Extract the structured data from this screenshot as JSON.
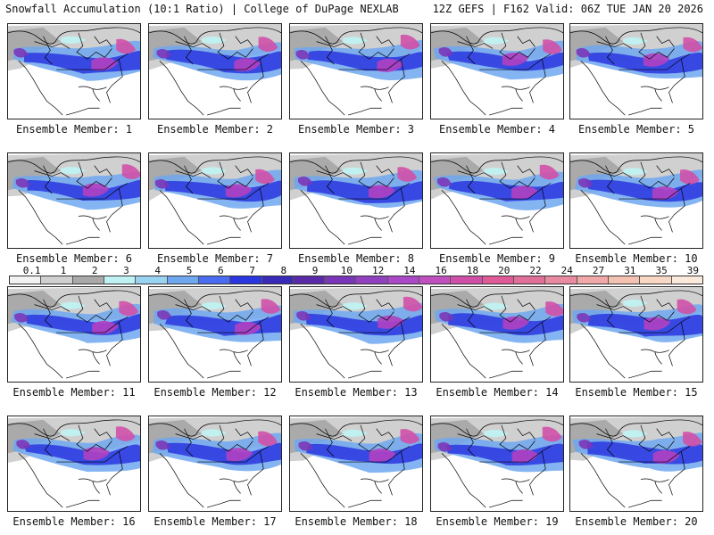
{
  "header": {
    "left": "Snowfall Accumulation (10:1 Ratio) | College of DuPage NEXLAB",
    "right": "12Z GEFS | F162 Valid: 06Z TUE JAN 20 2026"
  },
  "members": [
    {
      "label": "Ensemble Member: 1"
    },
    {
      "label": "Ensemble Member: 2"
    },
    {
      "label": "Ensemble Member: 3"
    },
    {
      "label": "Ensemble Member: 4"
    },
    {
      "label": "Ensemble Member: 5"
    },
    {
      "label": "Ensemble Member: 6"
    },
    {
      "label": "Ensemble Member: 7"
    },
    {
      "label": "Ensemble Member: 8"
    },
    {
      "label": "Ensemble Member: 9"
    },
    {
      "label": "Ensemble Member: 10"
    },
    {
      "label": "Ensemble Member: 11"
    },
    {
      "label": "Ensemble Member: 12"
    },
    {
      "label": "Ensemble Member: 13"
    },
    {
      "label": "Ensemble Member: 14"
    },
    {
      "label": "Ensemble Member: 15"
    },
    {
      "label": "Ensemble Member: 16"
    },
    {
      "label": "Ensemble Member: 17"
    },
    {
      "label": "Ensemble Member: 18"
    },
    {
      "label": "Ensemble Member: 19"
    },
    {
      "label": "Ensemble Member: 20"
    }
  ],
  "colorbar": {
    "tick_labels": [
      "0.1",
      "1",
      "2",
      "3",
      "4",
      "5",
      "6",
      "7",
      "8",
      "9",
      "10",
      "12",
      "14",
      "16",
      "18",
      "20",
      "22",
      "24",
      "27",
      "31",
      "35",
      "39"
    ],
    "colors": [
      "#f2f2f2",
      "#d0d0d0",
      "#a9a9a9",
      "#bff3f3",
      "#9ad3f2",
      "#6fa8f0",
      "#4a6cf0",
      "#2a36e0",
      "#3a2ab8",
      "#5a2aa8",
      "#7a36b8",
      "#9140c0",
      "#aa48c8",
      "#c050c0",
      "#d050a8",
      "#e05a98",
      "#e07098",
      "#e88aa0",
      "#f0a8a8",
      "#f4c2b0",
      "#f8d8c4",
      "#fbe9dc"
    ]
  }
}
